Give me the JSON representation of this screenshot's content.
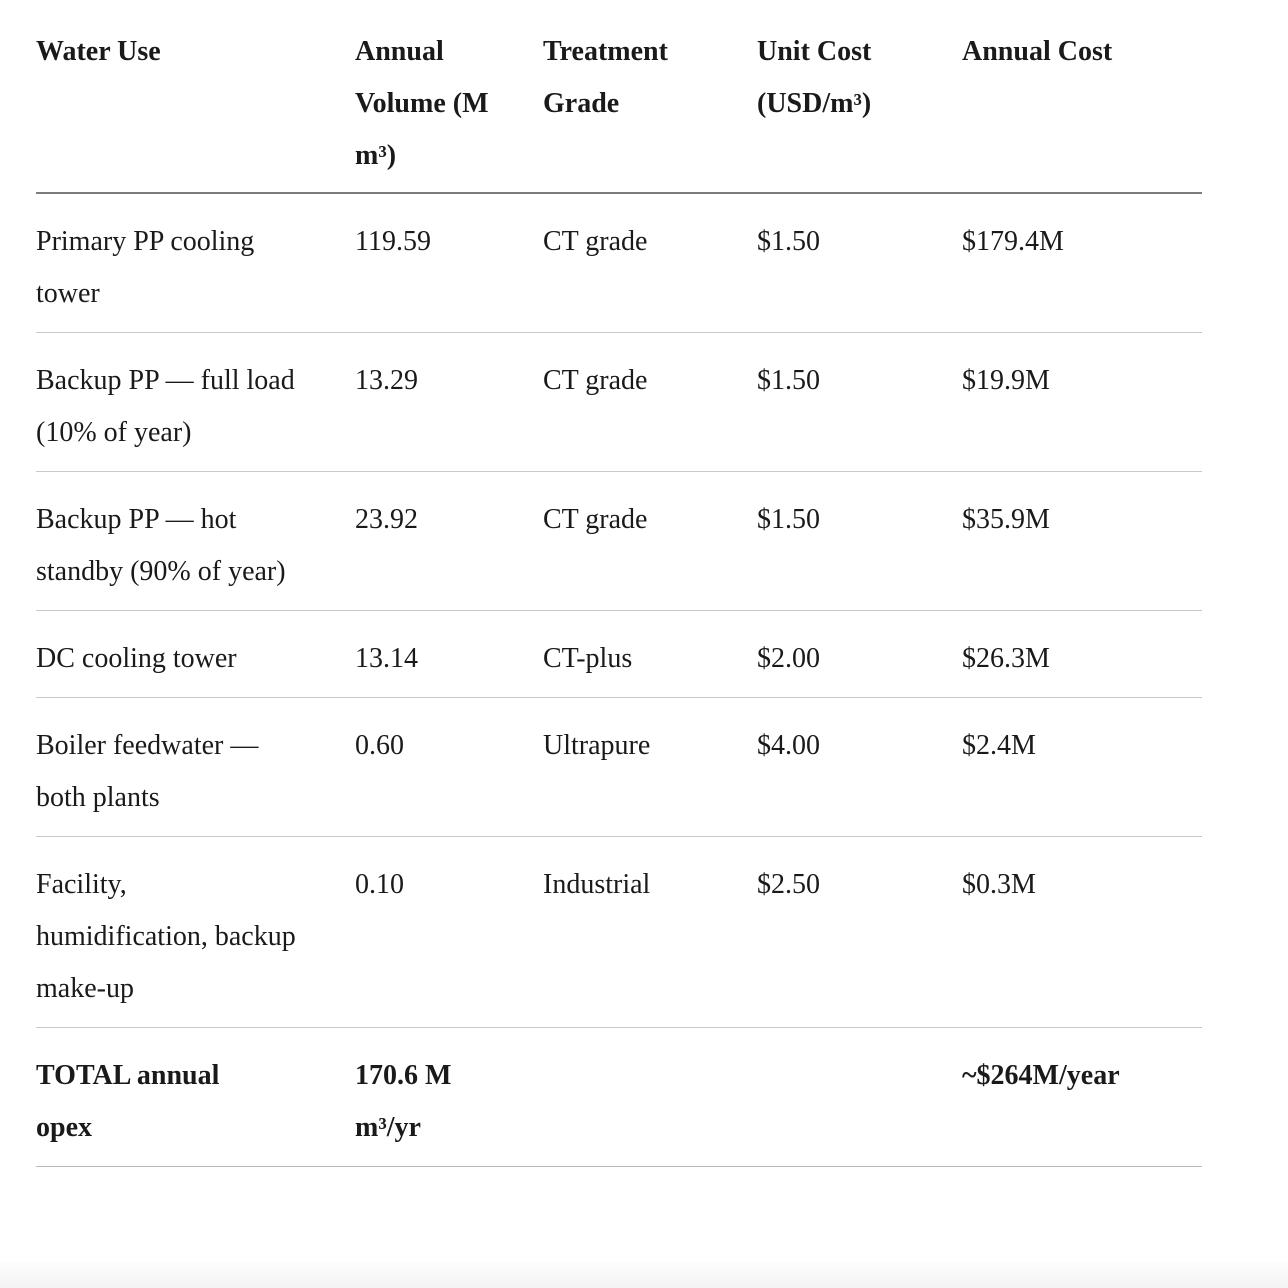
{
  "page": {
    "background": "#ffffff",
    "text_color": "#1a1a1a",
    "header_rule_color": "#7c7c7c",
    "row_rule_color": "#c9c9c9",
    "footer_strip_color": "#f4f4f4"
  },
  "table": {
    "columns": [
      "Water Use",
      "Annual Volume (M m³)",
      "Treatment Grade",
      "Unit Cost (USD/m³)",
      "Annual Cost"
    ],
    "rows": [
      [
        "Primary PP cooling tower",
        "119.59",
        "CT grade",
        "$1.50",
        "$179.4M"
      ],
      [
        "Backup PP — full load (10% of year)",
        "13.29",
        "CT grade",
        "$1.50",
        "$19.9M"
      ],
      [
        "Backup PP — hot standby (90% of year)",
        "23.92",
        "CT grade",
        "$1.50",
        "$35.9M"
      ],
      [
        "DC cooling tower",
        "13.14",
        "CT-plus",
        "$2.00",
        "$26.3M"
      ],
      [
        "Boiler feedwater — both plants",
        "0.60",
        "Ultrapure",
        "$4.00",
        "$2.4M"
      ],
      [
        "Facility, humidification, backup make-up",
        "0.10",
        "Industrial",
        "$2.50",
        "$0.3M"
      ]
    ],
    "total_row": [
      "TOTAL annual opex",
      "170.6 M m³/yr",
      "",
      "",
      "~$264M/year"
    ]
  }
}
